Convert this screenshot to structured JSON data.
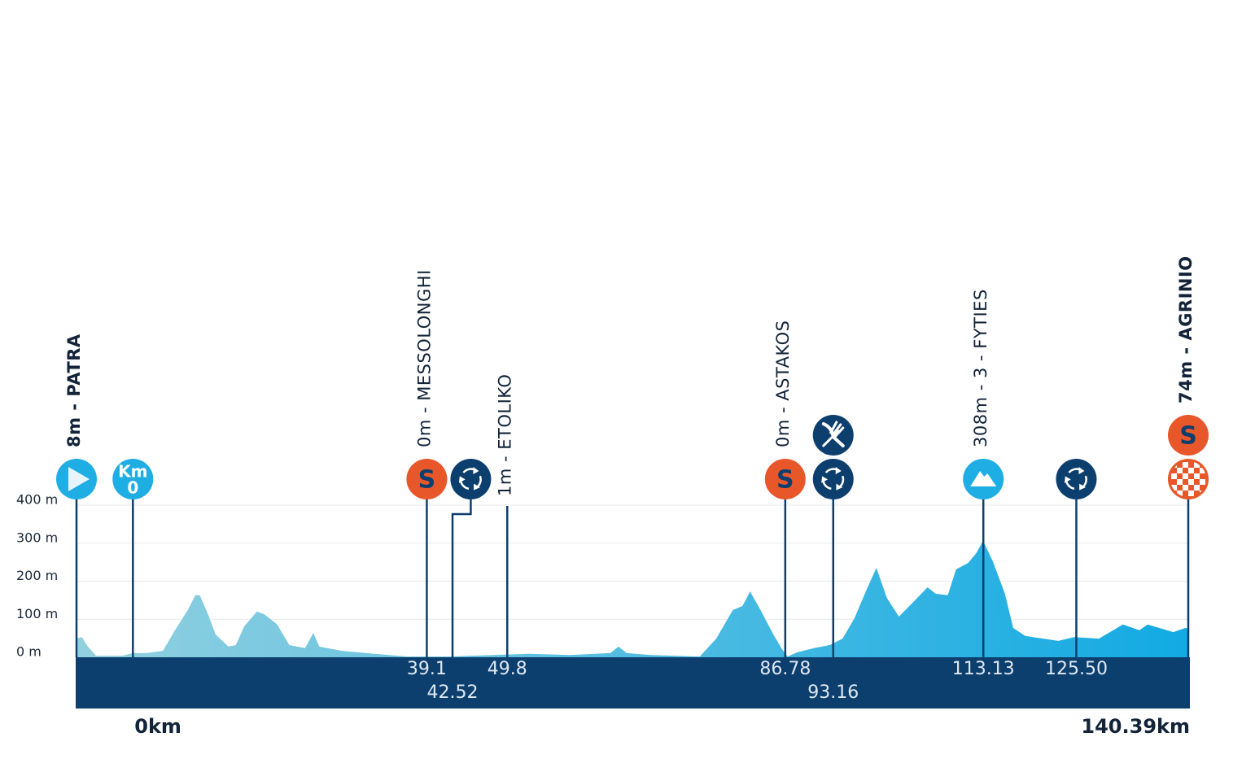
{
  "chart_data": {
    "type": "area",
    "xlim": [
      -7.5,
      140.39
    ],
    "ylim": [
      0,
      400
    ],
    "yticks": [
      {
        "value": 0,
        "label": "0 m"
      },
      {
        "value": 100,
        "label": "100 m"
      },
      {
        "value": 200,
        "label": "200 m"
      },
      {
        "value": 300,
        "label": "300 m"
      },
      {
        "value": 400,
        "label": "400 m"
      }
    ],
    "grid": true,
    "colors": [
      "#93d0df",
      "#12aae3"
    ],
    "x": [
      -7.5,
      -6.8,
      -6.0,
      -4.9,
      -1.4,
      0,
      1.8,
      4.0,
      5.6,
      7.3,
      8.3,
      8.9,
      10.0,
      11.0,
      12.7,
      13.7,
      14.8,
      16.5,
      17.5,
      19.2,
      20.8,
      22.9,
      24.0,
      24.8,
      27.8,
      32.1,
      36.5,
      41.9,
      52.7,
      58.1,
      63.5,
      64.6,
      65.7,
      68.9,
      75.4,
      77.6,
      79.8,
      81.1,
      82.1,
      83.5,
      85.2,
      86.5,
      87.1,
      88.4,
      90.6,
      92.7,
      94.4,
      96.0,
      97.6,
      98.9,
      100.3,
      101.9,
      103.6,
      105.7,
      106.8,
      108.4,
      109.5,
      111.1,
      112.2,
      113.1,
      114.4,
      116.0,
      117.1,
      118.7,
      123.1,
      125.2,
      128.5,
      131.7,
      133.9,
      135.0,
      138.4,
      140.0,
      140.39
    ],
    "values": [
      49,
      53,
      28,
      4,
      4,
      11,
      11,
      17,
      71,
      124,
      163,
      163,
      113,
      60,
      28,
      32,
      81,
      120,
      113,
      86,
      32,
      24,
      64,
      28,
      17,
      9,
      2,
      2,
      9,
      6,
      11,
      28,
      11,
      6,
      2,
      49,
      124,
      135,
      173,
      124,
      60,
      17,
      2,
      13,
      24,
      32,
      49,
      103,
      178,
      235,
      156,
      107,
      141,
      184,
      167,
      163,
      231,
      248,
      274,
      306,
      252,
      167,
      77,
      56,
      43,
      53,
      49,
      86,
      71,
      86,
      66,
      77,
      75
    ],
    "distance_labels": [
      {
        "value": 0,
        "label": "0km"
      },
      {
        "value": 140.39,
        "label": "140.39km"
      }
    ],
    "waypoints": [
      {
        "km": -7.5,
        "label": "8m - PATRA",
        "bold": true,
        "icons": [
          {
            "type": "start"
          }
        ]
      },
      {
        "km": 0,
        "icons": [
          {
            "type": "km0",
            "text": "Km",
            "subtext": "0"
          }
        ]
      },
      {
        "km": 39.1,
        "label": "0m - MESSOLONGHI",
        "km_label": "39.1",
        "icons": [
          {
            "type": "sprint",
            "text": "S"
          }
        ]
      },
      {
        "km": 42.52,
        "km_label": "42.52",
        "icons": [
          {
            "type": "feed"
          }
        ]
      },
      {
        "km": 49.8,
        "label": "1m - ETOLIKO",
        "km_label": "49.8",
        "icons": []
      },
      {
        "km": 86.78,
        "label": "0m - ASTAKOS",
        "km_label": "86.78",
        "icons": [
          {
            "type": "sprint",
            "text": "S"
          }
        ]
      },
      {
        "km": 93.16,
        "km_label": "93.16",
        "icons": [
          {
            "type": "feed"
          },
          {
            "type": "food"
          }
        ]
      },
      {
        "km": 113.13,
        "label": "308m - 3 - FYTIES",
        "km_label": "113.13",
        "icons": [
          {
            "type": "kom"
          }
        ]
      },
      {
        "km": 125.5,
        "km_label": "125.50",
        "icons": [
          {
            "type": "feed"
          }
        ]
      },
      {
        "km": 140.39,
        "label": "74m - AGRINIO",
        "bold": true,
        "icons": [
          {
            "type": "finish"
          },
          {
            "type": "sprint",
            "text": "S"
          }
        ]
      }
    ]
  }
}
